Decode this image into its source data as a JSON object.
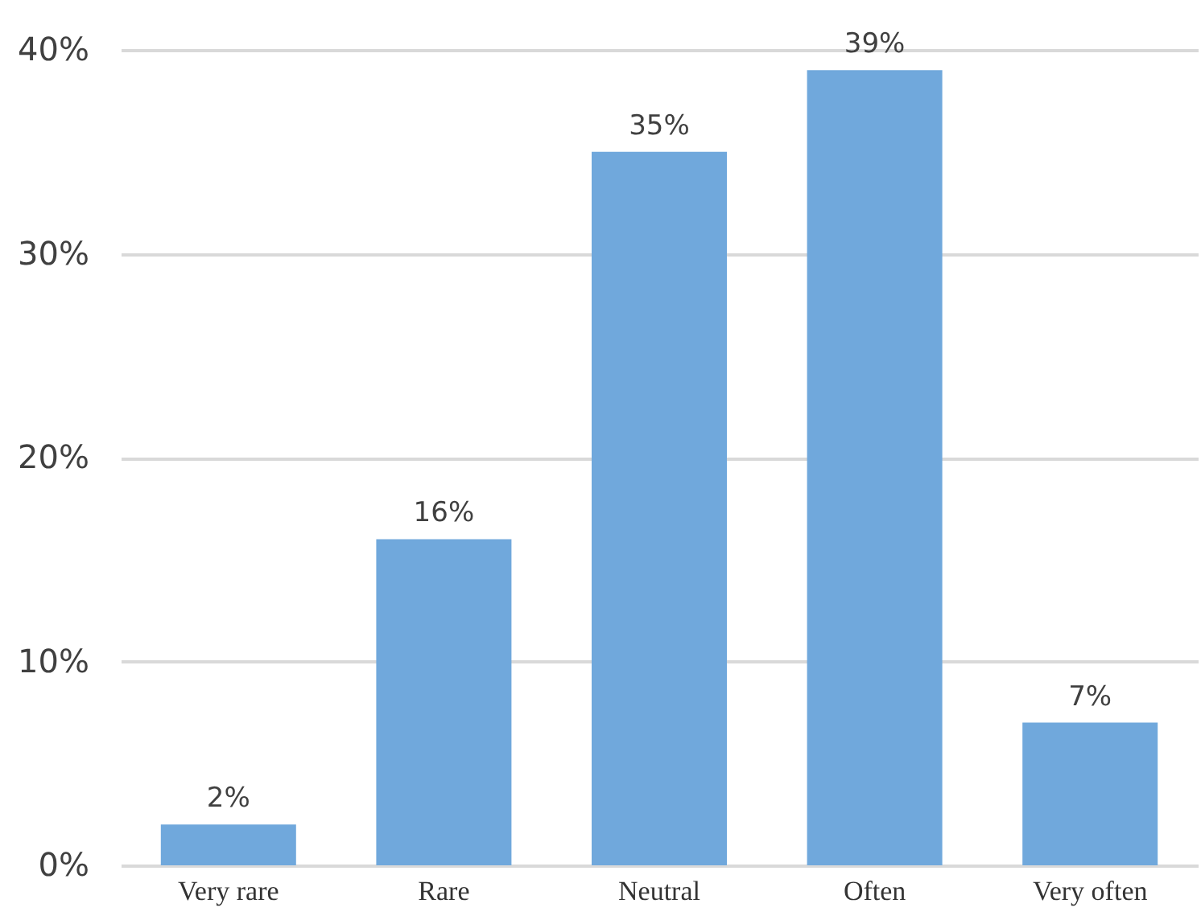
{
  "chart_data": {
    "type": "bar",
    "categories": [
      "Very rare",
      "Rare",
      "Neutral",
      "Often",
      "Very often"
    ],
    "values": [
      2,
      16,
      35,
      39,
      7
    ],
    "value_labels": [
      "2%",
      "16%",
      "35%",
      "39%",
      "7%"
    ],
    "color": "#70a8dc",
    "ylim": [
      0,
      40
    ],
    "yticks": [
      {
        "value": 0,
        "label": "0%"
      },
      {
        "value": 10,
        "label": "10%"
      },
      {
        "value": 20,
        "label": "20%"
      },
      {
        "value": 30,
        "label": "30%"
      },
      {
        "value": 40,
        "label": "40%"
      }
    ],
    "grid": "y"
  }
}
